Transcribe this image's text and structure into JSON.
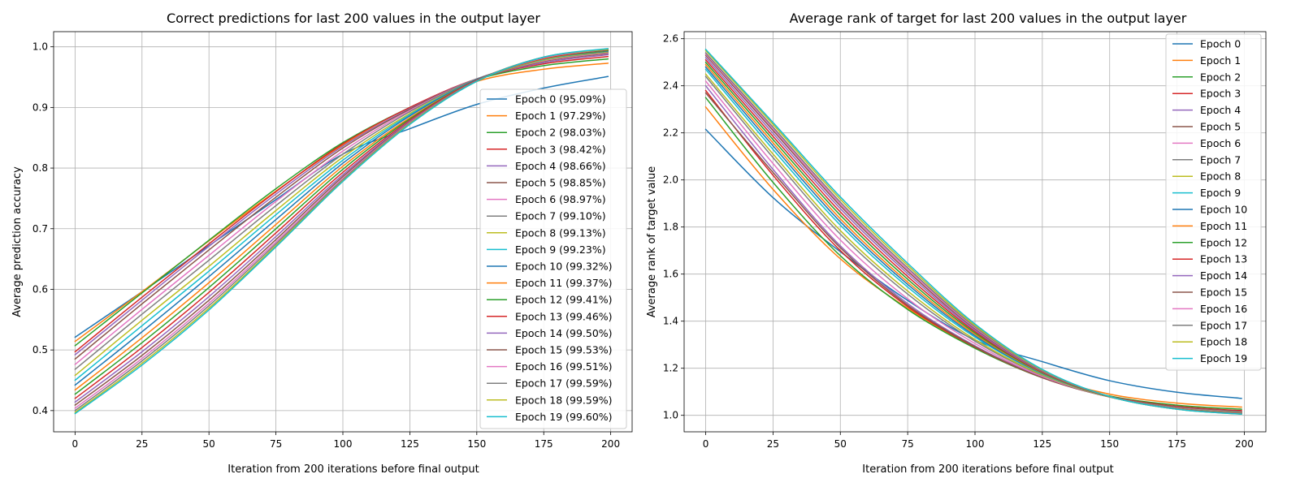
{
  "colors": {
    "palette": [
      "#1f77b4",
      "#ff7f0e",
      "#2ca02c",
      "#d62728",
      "#9467bd",
      "#8c564b",
      "#e377c2",
      "#7f7f7f",
      "#bcbd22",
      "#17becf"
    ],
    "grid": "#b0b0b0",
    "axis": "#000000"
  },
  "chart_data": [
    {
      "type": "line",
      "title": "Correct predictions for last 200 values in the output layer",
      "xlabel": "Iteration from 200 iterations before final output",
      "ylabel": "Average prediction accuracy",
      "xlim": [
        -8,
        208
      ],
      "ylim": [
        0.365,
        1.025
      ],
      "xticks": [
        0,
        25,
        50,
        75,
        100,
        125,
        150,
        175,
        200
      ],
      "yticks": [
        0.4,
        0.5,
        0.6,
        0.7,
        0.8,
        0.9,
        1.0
      ],
      "ytick_labels": [
        "0.4",
        "0.5",
        "0.6",
        "0.7",
        "0.8",
        "0.9",
        "1.0"
      ],
      "grid": true,
      "legend_position": "lower-right",
      "x": [
        0,
        25,
        50,
        75,
        100,
        125,
        150,
        175,
        199
      ],
      "series": [
        {
          "name": "Epoch 0 (95.09%)",
          "values": [
            0.521,
            0.596,
            0.672,
            0.748,
            0.823,
            0.865,
            0.905,
            0.932,
            0.951
          ]
        },
        {
          "name": "Epoch 1 (97.29%)",
          "values": [
            0.514,
            0.596,
            0.68,
            0.762,
            0.838,
            0.897,
            0.943,
            0.963,
            0.973
          ]
        },
        {
          "name": "Epoch 2 (98.03%)",
          "values": [
            0.507,
            0.594,
            0.681,
            0.766,
            0.842,
            0.9,
            0.946,
            0.969,
            0.98
          ]
        },
        {
          "name": "Epoch 3 (98.42%)",
          "values": [
            0.497,
            0.587,
            0.675,
            0.761,
            0.84,
            0.9,
            0.947,
            0.972,
            0.984
          ]
        },
        {
          "name": "Epoch 4 (98.66%)",
          "values": [
            0.492,
            0.582,
            0.671,
            0.757,
            0.836,
            0.898,
            0.947,
            0.974,
            0.987
          ]
        },
        {
          "name": "Epoch 5 (98.85%)",
          "values": [
            0.485,
            0.576,
            0.665,
            0.752,
            0.833,
            0.897,
            0.947,
            0.976,
            0.989
          ]
        },
        {
          "name": "Epoch 6 (98.97%)",
          "values": [
            0.476,
            0.567,
            0.656,
            0.745,
            0.828,
            0.895,
            0.947,
            0.977,
            0.99
          ]
        },
        {
          "name": "Epoch 7 (99.10%)",
          "values": [
            0.468,
            0.559,
            0.648,
            0.738,
            0.823,
            0.893,
            0.947,
            0.978,
            0.991
          ]
        },
        {
          "name": "Epoch 8 (99.13%)",
          "values": [
            0.458,
            0.549,
            0.638,
            0.73,
            0.818,
            0.89,
            0.946,
            0.978,
            0.992
          ]
        },
        {
          "name": "Epoch 9 (99.23%)",
          "values": [
            0.45,
            0.54,
            0.63,
            0.723,
            0.813,
            0.888,
            0.946,
            0.979,
            0.993
          ]
        },
        {
          "name": "Epoch 10 (99.32%)",
          "values": [
            0.442,
            0.53,
            0.621,
            0.715,
            0.808,
            0.886,
            0.946,
            0.98,
            0.993
          ]
        },
        {
          "name": "Epoch 11 (99.37%)",
          "values": [
            0.434,
            0.52,
            0.611,
            0.707,
            0.803,
            0.883,
            0.945,
            0.98,
            0.994
          ]
        },
        {
          "name": "Epoch 12 (99.41%)",
          "values": [
            0.427,
            0.512,
            0.603,
            0.7,
            0.798,
            0.881,
            0.945,
            0.981,
            0.994
          ]
        },
        {
          "name": "Epoch 13 (99.46%)",
          "values": [
            0.42,
            0.504,
            0.595,
            0.693,
            0.793,
            0.879,
            0.945,
            0.981,
            0.995
          ]
        },
        {
          "name": "Epoch 14 (99.50%)",
          "values": [
            0.414,
            0.497,
            0.588,
            0.687,
            0.789,
            0.877,
            0.944,
            0.982,
            0.995
          ]
        },
        {
          "name": "Epoch 15 (99.53%)",
          "values": [
            0.409,
            0.491,
            0.582,
            0.682,
            0.786,
            0.876,
            0.944,
            0.982,
            0.995
          ]
        },
        {
          "name": "Epoch 16 (99.51%)",
          "values": [
            0.404,
            0.486,
            0.577,
            0.678,
            0.783,
            0.875,
            0.944,
            0.982,
            0.996
          ]
        },
        {
          "name": "Epoch 17 (99.59%)",
          "values": [
            0.4,
            0.482,
            0.573,
            0.675,
            0.781,
            0.874,
            0.944,
            0.983,
            0.996
          ]
        },
        {
          "name": "Epoch 18 (99.59%)",
          "values": [
            0.397,
            0.478,
            0.569,
            0.672,
            0.779,
            0.873,
            0.943,
            0.983,
            0.996
          ]
        },
        {
          "name": "Epoch 19 (99.60%)",
          "values": [
            0.395,
            0.475,
            0.566,
            0.67,
            0.778,
            0.872,
            0.943,
            0.983,
            0.997
          ]
        }
      ]
    },
    {
      "type": "line",
      "title": "Average rank of target for last 200 values in the output layer",
      "xlabel": "Iteration from 200 iterations before final output",
      "ylabel": "Average rank of target value",
      "xlim": [
        -8,
        208
      ],
      "ylim": [
        0.93,
        2.63
      ],
      "xticks": [
        0,
        25,
        50,
        75,
        100,
        125,
        150,
        175,
        200
      ],
      "yticks": [
        1.0,
        1.2,
        1.4,
        1.6,
        1.8,
        2.0,
        2.2,
        2.4,
        2.6
      ],
      "ytick_labels": [
        "1.0",
        "1.2",
        "1.4",
        "1.6",
        "1.8",
        "2.0",
        "2.2",
        "2.4",
        "2.6"
      ],
      "grid": true,
      "legend_position": "upper-right",
      "x": [
        0,
        25,
        50,
        75,
        100,
        125,
        150,
        175,
        199
      ],
      "series": [
        {
          "name": "Epoch 0",
          "values": [
            2.215,
            1.925,
            1.695,
            1.488,
            1.32,
            1.228,
            1.147,
            1.098,
            1.072
          ]
        },
        {
          "name": "Epoch 1",
          "values": [
            2.31,
            1.96,
            1.665,
            1.455,
            1.29,
            1.168,
            1.09,
            1.052,
            1.035
          ]
        },
        {
          "name": "Epoch 2",
          "values": [
            2.35,
            1.99,
            1.678,
            1.45,
            1.285,
            1.16,
            1.082,
            1.043,
            1.026
          ]
        },
        {
          "name": "Epoch 3",
          "values": [
            2.38,
            2.02,
            1.7,
            1.462,
            1.29,
            1.16,
            1.08,
            1.038,
            1.02
          ]
        },
        {
          "name": "Epoch 4",
          "values": [
            2.4,
            2.045,
            1.72,
            1.475,
            1.295,
            1.162,
            1.078,
            1.035,
            1.016
          ]
        },
        {
          "name": "Epoch 5",
          "values": [
            2.37,
            2.032,
            1.712,
            1.468,
            1.292,
            1.16,
            1.078,
            1.035,
            1.016
          ]
        },
        {
          "name": "Epoch 6",
          "values": [
            2.42,
            2.07,
            1.745,
            1.495,
            1.305,
            1.165,
            1.078,
            1.032,
            1.013
          ]
        },
        {
          "name": "Epoch 7",
          "values": [
            2.44,
            2.095,
            1.77,
            1.515,
            1.315,
            1.17,
            1.078,
            1.031,
            1.012
          ]
        },
        {
          "name": "Epoch 8",
          "values": [
            2.45,
            2.11,
            1.785,
            1.528,
            1.322,
            1.172,
            1.078,
            1.03,
            1.011
          ]
        },
        {
          "name": "Epoch 9",
          "values": [
            2.47,
            2.13,
            1.808,
            1.545,
            1.332,
            1.176,
            1.079,
            1.03,
            1.01
          ]
        },
        {
          "name": "Epoch 10",
          "values": [
            2.48,
            2.145,
            1.822,
            1.556,
            1.338,
            1.178,
            1.079,
            1.029,
            1.009
          ]
        },
        {
          "name": "Epoch 11",
          "values": [
            2.49,
            2.158,
            1.835,
            1.566,
            1.344,
            1.18,
            1.079,
            1.029,
            1.009
          ]
        },
        {
          "name": "Epoch 12",
          "values": [
            2.5,
            2.172,
            1.85,
            1.578,
            1.35,
            1.182,
            1.079,
            1.028,
            1.008
          ]
        },
        {
          "name": "Epoch 13",
          "values": [
            2.51,
            2.185,
            1.864,
            1.59,
            1.356,
            1.184,
            1.079,
            1.028,
            1.008
          ]
        },
        {
          "name": "Epoch 14",
          "values": [
            2.52,
            2.198,
            1.878,
            1.602,
            1.362,
            1.186,
            1.08,
            1.027,
            1.007
          ]
        },
        {
          "name": "Epoch 15",
          "values": [
            2.53,
            2.21,
            1.89,
            1.612,
            1.368,
            1.188,
            1.08,
            1.027,
            1.007
          ]
        },
        {
          "name": "Epoch 16",
          "values": [
            2.535,
            2.218,
            1.898,
            1.62,
            1.372,
            1.19,
            1.08,
            1.027,
            1.006
          ]
        },
        {
          "name": "Epoch 17",
          "values": [
            2.54,
            2.225,
            1.906,
            1.627,
            1.376,
            1.191,
            1.08,
            1.026,
            1.006
          ]
        },
        {
          "name": "Epoch 18",
          "values": [
            2.55,
            2.236,
            1.918,
            1.637,
            1.382,
            1.193,
            1.08,
            1.026,
            1.005
          ]
        },
        {
          "name": "Epoch 19",
          "values": [
            2.555,
            2.244,
            1.928,
            1.646,
            1.388,
            1.195,
            1.08,
            1.026,
            1.005
          ]
        }
      ]
    }
  ]
}
